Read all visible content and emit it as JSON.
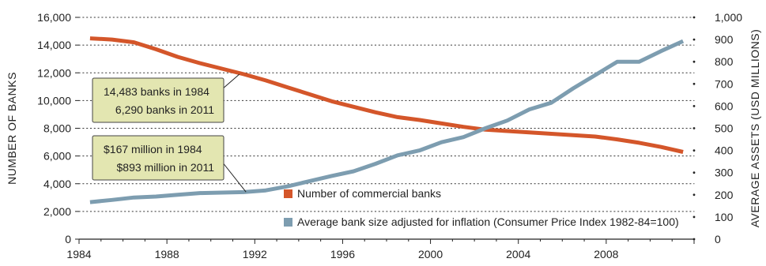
{
  "chart_data": {
    "type": "line",
    "xlabel": "",
    "ylabel_left": "NUMBER OF BANKS",
    "ylabel_right": "AVERAGE ASSETS (USD MILLIONS)",
    "xlim": [
      1984,
      2012
    ],
    "ylim_left": [
      0,
      16000
    ],
    "ylim_right": [
      0,
      1000
    ],
    "x_ticks": [
      "1984",
      "1988",
      "1992",
      "1996",
      "2000",
      "2004",
      "2008"
    ],
    "y_ticks_left": [
      "0",
      "2,000",
      "4,000",
      "6,000",
      "8,000",
      "10,000",
      "12,000",
      "14,000",
      "16,000"
    ],
    "y_ticks_right": [
      "0",
      "100",
      "200",
      "300",
      "400",
      "500",
      "600",
      "700",
      "800",
      "900",
      "1,000"
    ],
    "grid": "dotted horizontal",
    "legend_position": "bottom-right",
    "series": [
      {
        "name": "Number of commercial banks",
        "axis": "left",
        "color": "#d4562a",
        "x": [
          1984.5,
          1985.5,
          1986.5,
          1987.5,
          1988.5,
          1989.5,
          1990.5,
          1991.5,
          1992.5,
          1993.5,
          1994.5,
          1995.5,
          1996.5,
          1997.5,
          1998.5,
          1999.5,
          2000.5,
          2001.5,
          2002.5,
          2003.5,
          2004.5,
          2005.5,
          2006.5,
          2007.5,
          2008.5,
          2009.5,
          2010.5,
          2011.5
        ],
        "values": [
          14483,
          14400,
          14200,
          13700,
          13150,
          12700,
          12300,
          11900,
          11450,
          10950,
          10450,
          9950,
          9550,
          9150,
          8800,
          8600,
          8350,
          8100,
          7900,
          7800,
          7700,
          7600,
          7500,
          7400,
          7200,
          6950,
          6650,
          6290
        ]
      },
      {
        "name": "Average bank size adjusted for inflation (Consumer Price Index 1982-84=100)",
        "axis": "right",
        "color": "#7d9db0",
        "x": [
          1984.5,
          1985.5,
          1986.5,
          1987.5,
          1988.5,
          1989.5,
          1990.5,
          1991.5,
          1992.5,
          1993.5,
          1994.5,
          1995.5,
          1996.5,
          1997.5,
          1998.5,
          1999.5,
          2000.5,
          2001.5,
          2002.5,
          2003.5,
          2004.5,
          2005.5,
          2006.5,
          2007.5,
          2008.5,
          2009.5,
          2010.5,
          2011.5
        ],
        "values": [
          167,
          177,
          188,
          192,
          200,
          208,
          210,
          212,
          220,
          238,
          262,
          285,
          306,
          340,
          378,
          400,
          437,
          460,
          500,
          535,
          585,
          615,
          680,
          740,
          800,
          800,
          848,
          893
        ]
      }
    ],
    "annotations": [
      {
        "lines": [
          "14,483 banks in 1984",
          "6,290 banks in 2011"
        ]
      },
      {
        "lines": [
          "$167 million in 1984",
          "$893 million in 2011"
        ]
      }
    ]
  }
}
